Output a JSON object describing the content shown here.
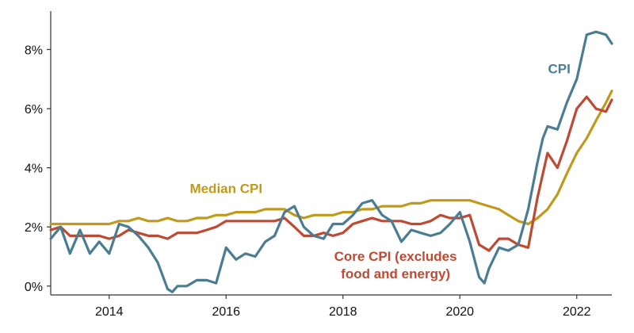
{
  "chart_data": {
    "type": "line",
    "title": "",
    "xlabel": "",
    "ylabel": "",
    "xlim": [
      2013.0,
      2022.6
    ],
    "ylim": [
      -0.3,
      9.3
    ],
    "grid": false,
    "x_ticks": [
      {
        "value": 2014,
        "label": "2014"
      },
      {
        "value": 2016,
        "label": "2016"
      },
      {
        "value": 2018,
        "label": "2018"
      },
      {
        "value": 2020,
        "label": "2020"
      },
      {
        "value": 2022,
        "label": "2022"
      }
    ],
    "y_ticks": [
      {
        "value": 0,
        "label": "0%"
      },
      {
        "value": 2,
        "label": "2%"
      },
      {
        "value": 4,
        "label": "4%"
      },
      {
        "value": 6,
        "label": "6%"
      },
      {
        "value": 8,
        "label": "8%"
      }
    ],
    "series": [
      {
        "name": "CPI",
        "color": "#4a7d94",
        "x": [
          2013.0,
          2013.17,
          2013.33,
          2013.5,
          2013.67,
          2013.83,
          2014.0,
          2014.17,
          2014.33,
          2014.5,
          2014.67,
          2014.83,
          2015.0,
          2015.08,
          2015.17,
          2015.33,
          2015.5,
          2015.67,
          2015.83,
          2016.0,
          2016.17,
          2016.33,
          2016.5,
          2016.67,
          2016.83,
          2017.0,
          2017.17,
          2017.33,
          2017.5,
          2017.67,
          2017.83,
          2018.0,
          2018.17,
          2018.33,
          2018.5,
          2018.67,
          2018.83,
          2019.0,
          2019.17,
          2019.33,
          2019.5,
          2019.67,
          2019.83,
          2020.0,
          2020.17,
          2020.33,
          2020.42,
          2020.5,
          2020.67,
          2020.83,
          2021.0,
          2021.17,
          2021.33,
          2021.42,
          2021.5,
          2021.67,
          2021.83,
          2022.0,
          2022.17,
          2022.33,
          2022.5,
          2022.6
        ],
        "y": [
          1.6,
          2.0,
          1.1,
          1.9,
          1.1,
          1.5,
          1.1,
          2.1,
          2.0,
          1.7,
          1.3,
          0.8,
          -0.1,
          -0.2,
          0.0,
          0.0,
          0.2,
          0.2,
          0.1,
          1.3,
          0.9,
          1.1,
          1.0,
          1.5,
          1.7,
          2.5,
          2.7,
          2.0,
          1.7,
          1.6,
          2.1,
          2.1,
          2.4,
          2.8,
          2.9,
          2.4,
          2.2,
          1.5,
          1.9,
          1.8,
          1.7,
          1.8,
          2.1,
          2.5,
          1.5,
          0.3,
          0.1,
          0.6,
          1.3,
          1.2,
          1.4,
          2.6,
          4.2,
          5.0,
          5.4,
          5.3,
          6.2,
          7.0,
          8.5,
          8.6,
          8.5,
          8.2
        ]
      },
      {
        "name": "Core CPI (excludes food and energy)",
        "color": "#be4a33",
        "x": [
          2013.0,
          2013.17,
          2013.33,
          2013.5,
          2013.67,
          2013.83,
          2014.0,
          2014.17,
          2014.33,
          2014.5,
          2014.67,
          2014.83,
          2015.0,
          2015.17,
          2015.33,
          2015.5,
          2015.67,
          2015.83,
          2016.0,
          2016.17,
          2016.33,
          2016.5,
          2016.67,
          2016.83,
          2017.0,
          2017.17,
          2017.33,
          2017.5,
          2017.67,
          2017.83,
          2018.0,
          2018.17,
          2018.33,
          2018.5,
          2018.67,
          2018.83,
          2019.0,
          2019.17,
          2019.33,
          2019.5,
          2019.67,
          2019.83,
          2020.0,
          2020.17,
          2020.33,
          2020.5,
          2020.67,
          2020.83,
          2021.0,
          2021.17,
          2021.33,
          2021.5,
          2021.67,
          2021.83,
          2022.0,
          2022.17,
          2022.33,
          2022.5,
          2022.6
        ],
        "y": [
          1.9,
          2.0,
          1.7,
          1.7,
          1.7,
          1.7,
          1.6,
          1.7,
          1.9,
          1.8,
          1.7,
          1.7,
          1.6,
          1.8,
          1.8,
          1.8,
          1.9,
          2.0,
          2.2,
          2.2,
          2.2,
          2.2,
          2.2,
          2.2,
          2.3,
          2.0,
          1.7,
          1.7,
          1.8,
          1.7,
          1.8,
          2.1,
          2.2,
          2.3,
          2.2,
          2.2,
          2.2,
          2.1,
          2.1,
          2.2,
          2.4,
          2.3,
          2.3,
          2.4,
          1.4,
          1.2,
          1.6,
          1.6,
          1.4,
          1.3,
          3.0,
          4.5,
          4.0,
          4.9,
          6.0,
          6.4,
          6.0,
          5.9,
          6.3
        ]
      },
      {
        "name": "Median CPI",
        "color": "#c09a1c",
        "x": [
          2013.0,
          2013.17,
          2013.33,
          2013.5,
          2013.67,
          2013.83,
          2014.0,
          2014.17,
          2014.33,
          2014.5,
          2014.67,
          2014.83,
          2015.0,
          2015.17,
          2015.33,
          2015.5,
          2015.67,
          2015.83,
          2016.0,
          2016.17,
          2016.33,
          2016.5,
          2016.67,
          2016.83,
          2017.0,
          2017.17,
          2017.33,
          2017.5,
          2017.67,
          2017.83,
          2018.0,
          2018.17,
          2018.33,
          2018.5,
          2018.67,
          2018.83,
          2019.0,
          2019.17,
          2019.33,
          2019.5,
          2019.67,
          2019.83,
          2020.0,
          2020.17,
          2020.33,
          2020.5,
          2020.67,
          2020.83,
          2021.0,
          2021.17,
          2021.33,
          2021.5,
          2021.67,
          2021.83,
          2022.0,
          2022.17,
          2022.33,
          2022.5,
          2022.6
        ],
        "y": [
          2.1,
          2.1,
          2.1,
          2.1,
          2.1,
          2.1,
          2.1,
          2.2,
          2.2,
          2.3,
          2.2,
          2.2,
          2.3,
          2.2,
          2.2,
          2.3,
          2.3,
          2.4,
          2.4,
          2.5,
          2.5,
          2.5,
          2.6,
          2.6,
          2.6,
          2.4,
          2.3,
          2.4,
          2.4,
          2.4,
          2.5,
          2.5,
          2.6,
          2.6,
          2.7,
          2.7,
          2.7,
          2.8,
          2.8,
          2.9,
          2.9,
          2.9,
          2.9,
          2.9,
          2.8,
          2.7,
          2.6,
          2.4,
          2.2,
          2.1,
          2.3,
          2.6,
          3.1,
          3.8,
          4.5,
          5.0,
          5.6,
          6.2,
          6.6
        ]
      }
    ],
    "annotations": [
      {
        "series": 0,
        "lines": [
          "CPI"
        ],
        "x": 2021.7,
        "y": 7.2
      },
      {
        "series": 2,
        "lines": [
          "Median CPI"
        ],
        "x": 2016.0,
        "y": 3.15
      },
      {
        "series": 1,
        "lines": [
          "Core CPI (excludes",
          "food and energy)"
        ],
        "x": 2018.9,
        "y": 0.85
      }
    ]
  }
}
